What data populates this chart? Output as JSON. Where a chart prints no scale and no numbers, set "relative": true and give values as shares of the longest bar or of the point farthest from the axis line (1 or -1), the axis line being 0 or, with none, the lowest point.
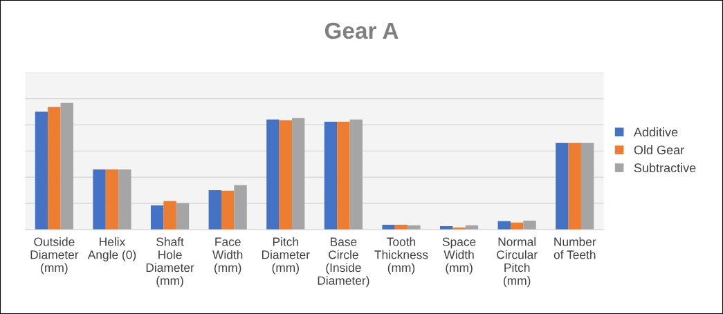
{
  "chart_data": {
    "type": "bar",
    "title": "Gear A",
    "relative": true,
    "categories": [
      "Outside\nDiameter\n(mm)",
      "Helix\nAngle (0)",
      "Shaft\nHole\nDiameter\n(mm)",
      "Face\nWidth\n(mm)",
      "Pitch\nDiameter\n(mm)",
      "Base\nCircle\n(Inside\nDiameter)",
      "Tooth\nThickness\n(mm)",
      "Space\nWidth\n(mm)",
      "Normal\nCircular\nPitch\n(mm)",
      "Number\nof Teeth"
    ],
    "series": [
      {
        "name": "Additive",
        "color": "#4472c4",
        "values": [
          0.93,
          0.475,
          0.19,
          0.311,
          0.869,
          0.852,
          0.038,
          0.027,
          0.066,
          0.683
        ]
      },
      {
        "name": "Old Gear",
        "color": "#ed7d31",
        "values": [
          0.967,
          0.475,
          0.224,
          0.306,
          0.863,
          0.852,
          0.038,
          0.016,
          0.055,
          0.683
        ]
      },
      {
        "name": "Subtractive",
        "color": "#a5a5a5",
        "values": [
          1,
          0.475,
          0.208,
          0.35,
          0.88,
          0.869,
          0.033,
          0.033,
          0.071,
          0.683
        ]
      }
    ],
    "grid": "y",
    "legend": "right"
  }
}
